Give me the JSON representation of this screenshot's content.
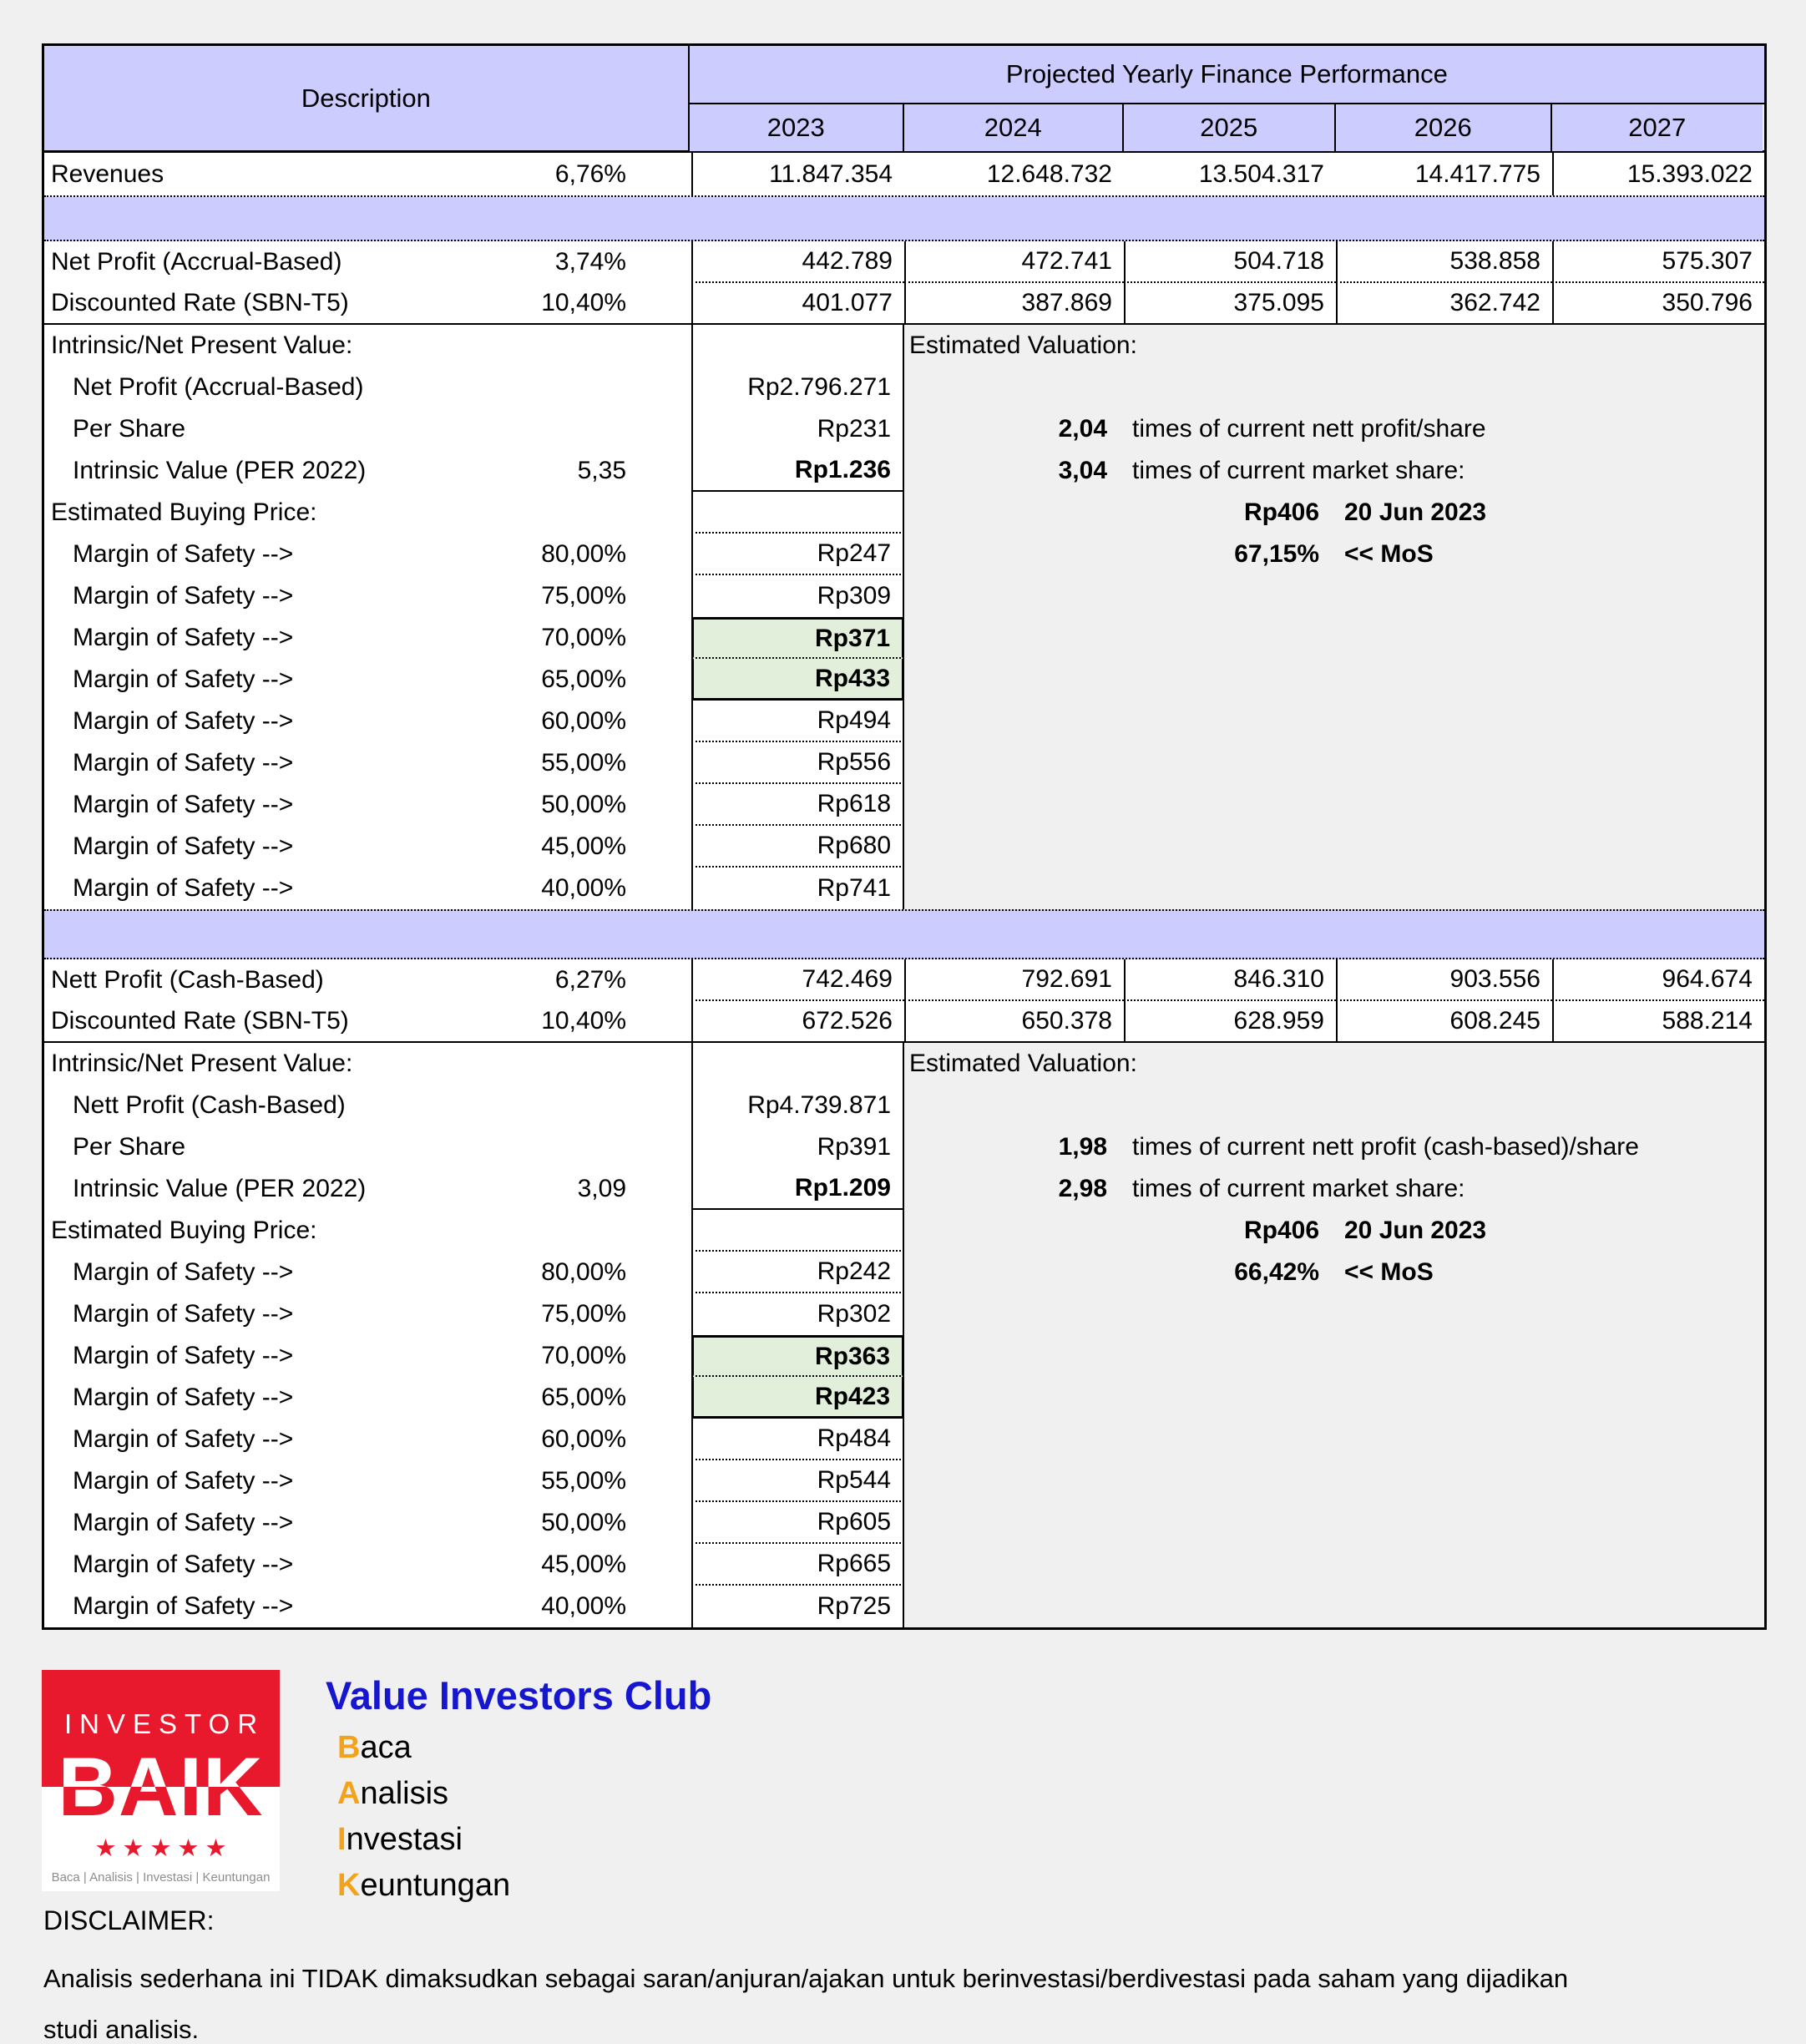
{
  "colors": {
    "header_fill": "#CCCCFF",
    "highlight_fill": "#E2EFDA",
    "brand_red": "#E8192C",
    "brand_blue": "#1616CE",
    "brand_orange": "#F5A21B",
    "page_bg": "#F0F0F0"
  },
  "table": {
    "description_header": "Description",
    "performance_header": "Projected Yearly Finance Performance",
    "years": [
      "2023",
      "2024",
      "2025",
      "2026",
      "2027"
    ],
    "revenues": {
      "label": "Revenues",
      "growth": "6,76%",
      "values": [
        "11.847.354",
        "12.648.732",
        "13.504.317",
        "14.417.775",
        "15.393.022"
      ]
    },
    "mos_label": "Margin of Safety -->",
    "section1": {
      "net_profit": {
        "label": "Net Profit (Accrual-Based)",
        "growth": "3,74%",
        "values": [
          "442.789",
          "472.741",
          "504.718",
          "538.858",
          "575.307"
        ]
      },
      "discounted": {
        "label": "Discounted Rate (SBN-T5)",
        "rate": "10,40%",
        "values": [
          "401.077",
          "387.869",
          "375.095",
          "362.742",
          "350.796"
        ]
      },
      "intrinsic_title": "Intrinsic/Net Present Value:",
      "npv_label": "Net Profit (Accrual-Based)",
      "npv_value": "Rp2.796.271",
      "per_share_label": "Per Share",
      "per_share_value": "Rp231",
      "intrinsic_label": "Intrinsic Value (PER 2022)",
      "intrinsic_per": "5,35",
      "intrinsic_value": "Rp1.236",
      "ebp_title": "Estimated Buying Price:",
      "mos": [
        {
          "pct": "80,00%",
          "value": "Rp247"
        },
        {
          "pct": "75,00%",
          "value": "Rp309"
        },
        {
          "pct": "70,00%",
          "value": "Rp371"
        },
        {
          "pct": "65,00%",
          "value": "Rp433"
        },
        {
          "pct": "60,00%",
          "value": "Rp494"
        },
        {
          "pct": "55,00%",
          "value": "Rp556"
        },
        {
          "pct": "50,00%",
          "value": "Rp618"
        },
        {
          "pct": "45,00%",
          "value": "Rp680"
        },
        {
          "pct": "40,00%",
          "value": "Rp741"
        }
      ],
      "valuation": {
        "title": "Estimated Valuation:",
        "profit_multiple": "2,04",
        "profit_multiple_text": "times of current nett profit/share",
        "market_multiple": "3,04",
        "market_multiple_text": "times of current market share:",
        "market_price": "Rp406",
        "price_date": "20 Jun 2023",
        "mos_pct": "67,15%",
        "mos_tag": "<< MoS"
      }
    },
    "section2": {
      "net_profit": {
        "label": "Nett Profit (Cash-Based)",
        "growth": "6,27%",
        "values": [
          "742.469",
          "792.691",
          "846.310",
          "903.556",
          "964.674"
        ]
      },
      "discounted": {
        "label": "Discounted Rate (SBN-T5)",
        "rate": "10,40%",
        "values": [
          "672.526",
          "650.378",
          "628.959",
          "608.245",
          "588.214"
        ]
      },
      "intrinsic_title": "Intrinsic/Net Present Value:",
      "npv_label": "Nett Profit (Cash-Based)",
      "npv_value": "Rp4.739.871",
      "per_share_label": "Per Share",
      "per_share_value": "Rp391",
      "intrinsic_label": "Intrinsic Value (PER 2022)",
      "intrinsic_per": "3,09",
      "intrinsic_value": "Rp1.209",
      "ebp_title": "Estimated Buying Price:",
      "mos": [
        {
          "pct": "80,00%",
          "value": "Rp242"
        },
        {
          "pct": "75,00%",
          "value": "Rp302"
        },
        {
          "pct": "70,00%",
          "value": "Rp363"
        },
        {
          "pct": "65,00%",
          "value": "Rp423"
        },
        {
          "pct": "60,00%",
          "value": "Rp484"
        },
        {
          "pct": "55,00%",
          "value": "Rp544"
        },
        {
          "pct": "50,00%",
          "value": "Rp605"
        },
        {
          "pct": "45,00%",
          "value": "Rp665"
        },
        {
          "pct": "40,00%",
          "value": "Rp725"
        }
      ],
      "valuation": {
        "title": "Estimated Valuation:",
        "profit_multiple": "1,98",
        "profit_multiple_text": "times of current nett profit (cash-based)/share",
        "market_multiple": "2,98",
        "market_multiple_text": "times of current market share:",
        "market_price": "Rp406",
        "price_date": "20 Jun 2023",
        "mos_pct": "66,42%",
        "mos_tag": "<< MoS"
      }
    }
  },
  "branding": {
    "logo": {
      "line1": "INVESTOR",
      "line2": "BAIK",
      "stars": "★★★★★",
      "caption": "Baca | Analisis | Investasi | Keuntungan"
    },
    "club_title": "Value Investors Club",
    "acronym": [
      {
        "initial": "B",
        "rest": "aca"
      },
      {
        "initial": "A",
        "rest": "nalisis"
      },
      {
        "initial": "I",
        "rest": "nvestasi"
      },
      {
        "initial": "K",
        "rest": "euntungan"
      }
    ]
  },
  "disclaimer": {
    "title": "DISCLAIMER:",
    "body": "Analisis sederhana ini TIDAK dimaksudkan sebagai saran/anjuran/ajakan untuk berinvestasi/berdivestasi pada saham yang dijadikan studi analisis."
  }
}
